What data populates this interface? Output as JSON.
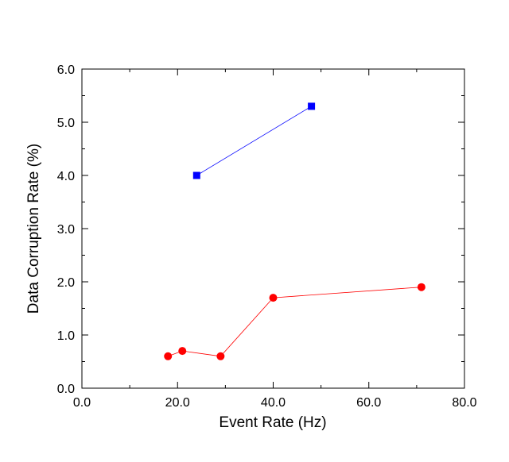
{
  "chart_data": {
    "type": "line",
    "title": "",
    "xlabel": "Event Rate (Hz)",
    "ylabel": "Data Corruption Rate (%)",
    "xlim": [
      0,
      80
    ],
    "ylim": [
      0,
      6
    ],
    "x_ticks": [
      0,
      20,
      40,
      60,
      80
    ],
    "x_tick_labels": [
      "0.0",
      "20.0",
      "40.0",
      "60.0",
      "80.0"
    ],
    "y_ticks": [
      0,
      1,
      2,
      3,
      4,
      5,
      6
    ],
    "y_tick_labels": [
      "0.0",
      "1.0",
      "2.0",
      "3.0",
      "4.0",
      "5.0",
      "6.0"
    ],
    "grid": false,
    "series": [
      {
        "marker": "square",
        "color": "#0000ff",
        "points": [
          [
            24,
            4.0
          ],
          [
            48,
            5.3
          ]
        ]
      },
      {
        "marker": "circle",
        "color": "#ff0000",
        "points": [
          [
            18,
            0.6
          ],
          [
            21,
            0.7
          ],
          [
            29,
            0.6
          ],
          [
            40,
            1.7
          ],
          [
            71,
            1.9
          ]
        ]
      }
    ]
  }
}
